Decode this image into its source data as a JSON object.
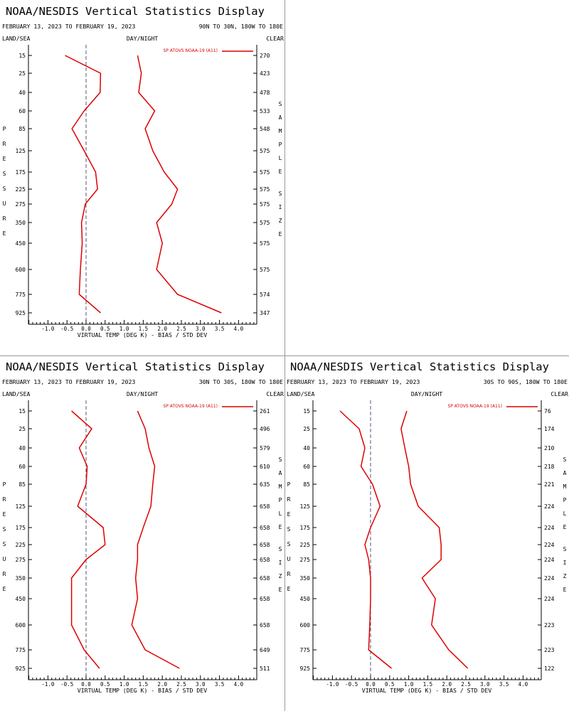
{
  "page": {
    "title": "NOAA/NESDIS Vertical Statistics Display"
  },
  "chart_data": [
    {
      "type": "line",
      "title": "NOAA/NESDIS Vertical Statistics Display",
      "date_range": "FEBRUARY 13, 2023 TO FEBRUARY 19, 2023",
      "region": "90N TO 30N, 180W TO 180E",
      "land_sea": "LAND/SEA",
      "day_night": "DAY/NIGHT",
      "clear": "CLEAR",
      "xlabel": "VIRTUAL TEMP (DEG K) - BIAS / STD DEV",
      "ylabel": "PRESSURE",
      "right_label": "SAMPLE SIZE",
      "xlim": [
        -1.5,
        4.5
      ],
      "xticks": [
        -1.0,
        -0.5,
        0.0,
        0.5,
        1.0,
        1.5,
        2.0,
        2.5,
        3.0,
        3.5,
        4.0
      ],
      "pressure_levels": [
        "15",
        "25",
        "40",
        "60",
        "85",
        "125",
        "175",
        "225",
        "275",
        "350",
        "450",
        "600",
        "775",
        "925"
      ],
      "sample_sizes": [
        "270",
        "423",
        "478",
        "533",
        "548",
        "575",
        "575",
        "575",
        "575",
        "575",
        "575",
        "575",
        "574",
        "347"
      ],
      "series": [
        {
          "name": "SP ATOVS NOAA-19 (A11)",
          "role": "bias",
          "values": [
            -0.55,
            0.38,
            0.37,
            -0.05,
            -0.37,
            -0.05,
            0.25,
            0.3,
            -0.02,
            -0.12,
            -0.1,
            -0.15,
            -0.18,
            0.38
          ]
        },
        {
          "role": "std_dev",
          "values": [
            1.35,
            1.45,
            1.38,
            1.8,
            1.55,
            1.75,
            2.05,
            2.4,
            2.25,
            1.85,
            2.0,
            1.85,
            2.4,
            3.55
          ]
        }
      ],
      "color": "#dd0000",
      "legend_position": "top-right"
    },
    {
      "type": "line",
      "title": "NOAA/NESDIS Vertical Statistics Display",
      "date_range": "FEBRUARY 13, 2023 TO FEBRUARY 19, 2023",
      "region": "30N TO 30S, 180W TO 180E",
      "land_sea": "LAND/SEA",
      "day_night": "DAY/NIGHT",
      "clear": "CLEAR",
      "xlabel": "VIRTUAL TEMP (DEG K) - BIAS / STD DEV",
      "ylabel": "PRESSURE",
      "right_label": "SAMPLE SIZE",
      "xlim": [
        -1.5,
        4.5
      ],
      "xticks": [
        -1.0,
        -0.5,
        0.0,
        0.5,
        1.0,
        1.5,
        2.0,
        2.5,
        3.0,
        3.5,
        4.0
      ],
      "pressure_levels": [
        "15",
        "25",
        "40",
        "60",
        "85",
        "125",
        "175",
        "225",
        "275",
        "350",
        "450",
        "600",
        "775",
        "925"
      ],
      "sample_sizes": [
        "261",
        "496",
        "579",
        "610",
        "635",
        "658",
        "658",
        "658",
        "658",
        "658",
        "658",
        "658",
        "649",
        "511"
      ],
      "series": [
        {
          "name": "SP ATOVS NOAA-19 (A11)",
          "role": "bias",
          "values": [
            -0.38,
            0.15,
            -0.18,
            0.03,
            0.0,
            -0.22,
            0.45,
            0.5,
            0.0,
            -0.38,
            -0.38,
            -0.38,
            -0.05,
            0.35
          ]
        },
        {
          "role": "std_dev",
          "values": [
            1.35,
            1.55,
            1.65,
            1.8,
            1.75,
            1.7,
            1.5,
            1.35,
            1.35,
            1.3,
            1.35,
            1.2,
            1.55,
            2.45
          ]
        }
      ],
      "color": "#dd0000",
      "legend_position": "top-right"
    },
    {
      "type": "line",
      "title": "NOAA/NESDIS Vertical Statistics Display",
      "date_range": "FEBRUARY 13, 2023 TO FEBRUARY 19, 2023",
      "region": "30S TO 90S, 180W TO 180E",
      "land_sea": "LAND/SEA",
      "day_night": "DAY/NIGHT",
      "clear": "CLEAR",
      "xlabel": "VIRTUAL TEMP (DEG K) - BIAS / STD DEV",
      "ylabel": "PRESSURE",
      "right_label": "SAMPLE SIZE",
      "xlim": [
        -1.5,
        4.5
      ],
      "xticks": [
        -1.0,
        -0.5,
        0.0,
        0.5,
        1.0,
        1.5,
        2.0,
        2.5,
        3.0,
        3.5,
        4.0
      ],
      "pressure_levels": [
        "15",
        "25",
        "40",
        "60",
        "85",
        "125",
        "175",
        "225",
        "275",
        "350",
        "450",
        "600",
        "775",
        "925"
      ],
      "sample_sizes": [
        "76",
        "174",
        "210",
        "218",
        "221",
        "224",
        "224",
        "224",
        "224",
        "224",
        "224",
        "223",
        "223",
        "122"
      ],
      "series": [
        {
          "name": "SP ATOVS NOAA-19 (A11)",
          "role": "bias",
          "values": [
            -0.8,
            -0.3,
            -0.15,
            -0.25,
            0.05,
            0.25,
            0.0,
            -0.15,
            -0.05,
            0.0,
            0.0,
            -0.02,
            -0.05,
            0.55
          ]
        },
        {
          "role": "std_dev",
          "values": [
            0.95,
            0.8,
            0.9,
            1.0,
            1.05,
            1.25,
            1.8,
            1.85,
            1.85,
            1.35,
            1.7,
            1.6,
            2.05,
            2.55
          ]
        }
      ],
      "color": "#dd0000",
      "legend_position": "top-right"
    }
  ]
}
